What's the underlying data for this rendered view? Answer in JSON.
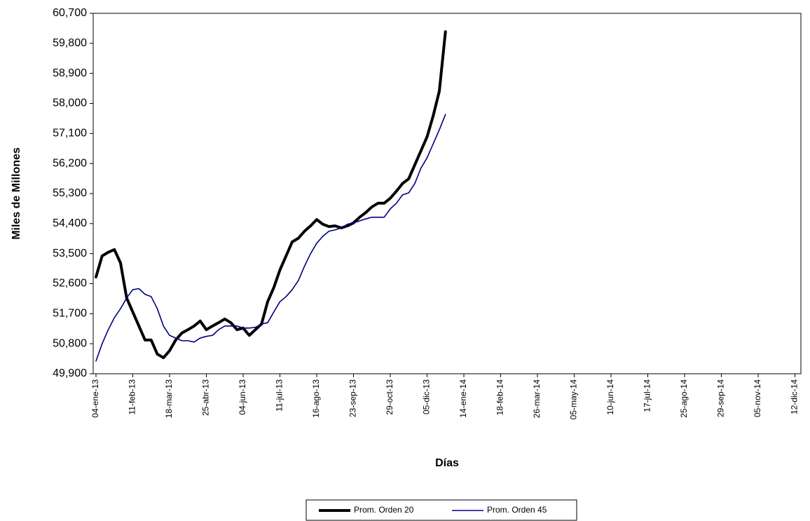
{
  "chart_data": {
    "type": "line",
    "y_label": "Miles de Millones",
    "x_label": "Días",
    "categories": [
      "04-ene-13",
      null,
      null,
      null,
      null,
      null,
      "11-feb-13",
      null,
      null,
      null,
      null,
      null,
      "18-mar-13",
      null,
      null,
      null,
      null,
      null,
      "25-abr-13",
      null,
      null,
      null,
      null,
      null,
      "04-jun-13",
      null,
      null,
      null,
      null,
      null,
      "11-jul-13",
      null,
      null,
      null,
      null,
      null,
      "16-ago-13",
      null,
      null,
      null,
      null,
      null,
      "23-sep-13",
      null,
      null,
      null,
      null,
      null,
      "29-oct-13",
      null,
      null,
      null,
      null,
      null,
      "05-dic-13",
      null,
      null,
      null,
      null,
      null,
      "14-ene-14",
      null,
      null,
      null,
      null,
      null,
      "18-feb-14",
      null,
      null,
      null,
      null,
      null,
      "26-mar-14",
      null,
      null,
      null,
      null,
      null,
      "05-may-14",
      null,
      null,
      null,
      null,
      null,
      "10-jun-14",
      null,
      null,
      null,
      null,
      null,
      "17-jul-14",
      null,
      null,
      null,
      null,
      null,
      "25-ago-14",
      null,
      null,
      null,
      null,
      null,
      "29-sep-14",
      null,
      null,
      null,
      null,
      null,
      "05-nov-14",
      null,
      null,
      null,
      null,
      null,
      "12-dic-14",
      null
    ],
    "series": [
      {
        "name": "Prom. Orden 20",
        "color": "#000000",
        "width": 4,
        "values": [
          52800,
          53430,
          53540,
          53620,
          53220,
          52170,
          51750,
          51330,
          50910,
          50910,
          50490,
          50380,
          50590,
          50910,
          51120,
          51220,
          51330,
          51480,
          51220,
          51330,
          51430,
          51540,
          51430,
          51220,
          51270,
          51050,
          51220,
          51390,
          52060,
          52480,
          53010,
          53430,
          53850,
          53960,
          54170,
          54330,
          54520,
          54380,
          54310,
          54330,
          54270,
          54330,
          54420,
          54590,
          54730,
          54900,
          55010,
          55010,
          55160,
          55370,
          55600,
          55740,
          56160,
          56580,
          57000,
          57630,
          58370,
          60150,
          null,
          null,
          null,
          null,
          null,
          null,
          null,
          null,
          null,
          null,
          null,
          null,
          null,
          null,
          null,
          null,
          null,
          null,
          null,
          null,
          null,
          null,
          null,
          null,
          null,
          null,
          null,
          null,
          null,
          null,
          null,
          null,
          null,
          null,
          null,
          null,
          null,
          null,
          null,
          null,
          null,
          null,
          null,
          null,
          null,
          null,
          null,
          null,
          null,
          null,
          null,
          null,
          null,
          null,
          null,
          null,
          null,
          null
        ]
      },
      {
        "name": "Prom. Orden 45",
        "color": "#000080",
        "width": 1.6,
        "values": [
          50280,
          50800,
          51220,
          51580,
          51850,
          52170,
          52420,
          52450,
          52280,
          52210,
          51850,
          51330,
          51050,
          50970,
          50890,
          50890,
          50850,
          50970,
          51020,
          51050,
          51220,
          51330,
          51330,
          51330,
          51270,
          51270,
          51290,
          51390,
          51430,
          51750,
          52060,
          52210,
          52420,
          52690,
          53120,
          53500,
          53810,
          54020,
          54170,
          54210,
          54270,
          54380,
          54420,
          54480,
          54540,
          54590,
          54590,
          54590,
          54840,
          55010,
          55260,
          55320,
          55600,
          56060,
          56370,
          56790,
          57210,
          57670,
          null,
          null,
          null,
          null,
          null,
          null,
          null,
          null,
          null,
          null,
          null,
          null,
          null,
          null,
          null,
          null,
          null,
          null,
          null,
          null,
          null,
          null,
          null,
          null,
          null,
          null,
          null,
          null,
          null,
          null,
          null,
          null,
          null,
          null,
          null,
          null,
          null,
          null,
          null,
          null,
          null,
          null,
          null,
          null,
          null,
          null,
          null,
          null,
          null,
          null,
          null,
          null,
          null,
          null,
          null,
          null,
          null,
          null
        ]
      }
    ],
    "ylim": [
      49900,
      60700
    ],
    "yticks": [
      {
        "value": 49900,
        "label": "49,900"
      },
      {
        "value": 50800,
        "label": "50,800"
      },
      {
        "value": 51700,
        "label": "51,700"
      },
      {
        "value": 52600,
        "label": "52,600"
      },
      {
        "value": 53500,
        "label": "53,500"
      },
      {
        "value": 54400,
        "label": "54,400"
      },
      {
        "value": 55300,
        "label": "55,300"
      },
      {
        "value": 56200,
        "label": "56,200"
      },
      {
        "value": 57100,
        "label": "57,100"
      },
      {
        "value": 58000,
        "label": "58,000"
      },
      {
        "value": 58900,
        "label": "58,900"
      },
      {
        "value": 59800,
        "label": "59,800"
      },
      {
        "value": 60700,
        "label": "60,700"
      }
    ],
    "grid": false,
    "legend": "bottom"
  }
}
